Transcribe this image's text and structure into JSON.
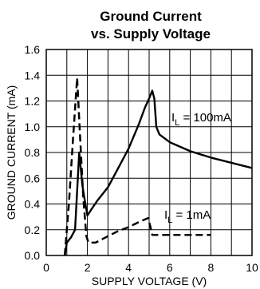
{
  "chart_data": {
    "type": "line",
    "title_lines": [
      "Ground Current",
      "vs. Supply Voltage"
    ],
    "xlabel": "SUPPLY VOLTAGE (V)",
    "ylabel": "GROUND CURRENT (mA)",
    "xlim": [
      0,
      10
    ],
    "ylim": [
      0,
      1.6
    ],
    "x_ticks": [
      0,
      2,
      4,
      6,
      8,
      10
    ],
    "y_ticks": [
      0.0,
      0.2,
      0.4,
      0.6,
      0.8,
      1.0,
      1.2,
      1.4,
      1.6
    ],
    "x_tick_labels": [
      "0",
      "2",
      "4",
      "6",
      "8",
      "10"
    ],
    "y_tick_labels": [
      "0.0",
      "0.2",
      "0.4",
      "0.6",
      "0.8",
      "1.0",
      "1.2",
      "1.4",
      "1.6"
    ],
    "grid": true,
    "series": [
      {
        "label_main": "I",
        "label_sub": "L",
        "label_rest": " = 100mA",
        "style": "solid",
        "x": [
          0.9,
          1.0,
          1.2,
          1.4,
          1.5,
          1.6,
          1.75,
          1.85,
          2.0,
          2.2,
          2.5,
          3.0,
          3.5,
          4.0,
          4.5,
          4.8,
          5.0,
          5.15,
          5.25,
          5.35,
          5.5,
          6.0,
          7.0,
          8.0,
          9.0,
          10.0
        ],
        "y": [
          0.0,
          0.1,
          0.14,
          0.2,
          0.5,
          0.8,
          0.55,
          0.45,
          0.31,
          0.36,
          0.43,
          0.53,
          0.68,
          0.83,
          1.02,
          1.15,
          1.22,
          1.28,
          1.22,
          1.0,
          0.94,
          0.88,
          0.81,
          0.76,
          0.72,
          0.68
        ]
      },
      {
        "label_main": "I",
        "label_sub": "L",
        "label_rest": " = 1mA",
        "style": "dashed",
        "x": [
          0.9,
          1.1,
          1.3,
          1.5,
          1.65,
          1.8,
          1.95,
          2.05,
          2.4,
          3.0,
          3.5,
          4.0,
          4.5,
          4.95,
          5.05,
          5.15,
          5.5,
          6.0,
          7.0,
          8.0
        ],
        "y": [
          0.0,
          0.4,
          0.9,
          1.38,
          0.9,
          0.45,
          0.15,
          0.1,
          0.1,
          0.15,
          0.19,
          0.22,
          0.26,
          0.29,
          0.23,
          0.16,
          0.16,
          0.16,
          0.16,
          0.16
        ]
      }
    ],
    "colors": {
      "line": "#000000",
      "grid": "#000000",
      "background": "#ffffff"
    }
  }
}
